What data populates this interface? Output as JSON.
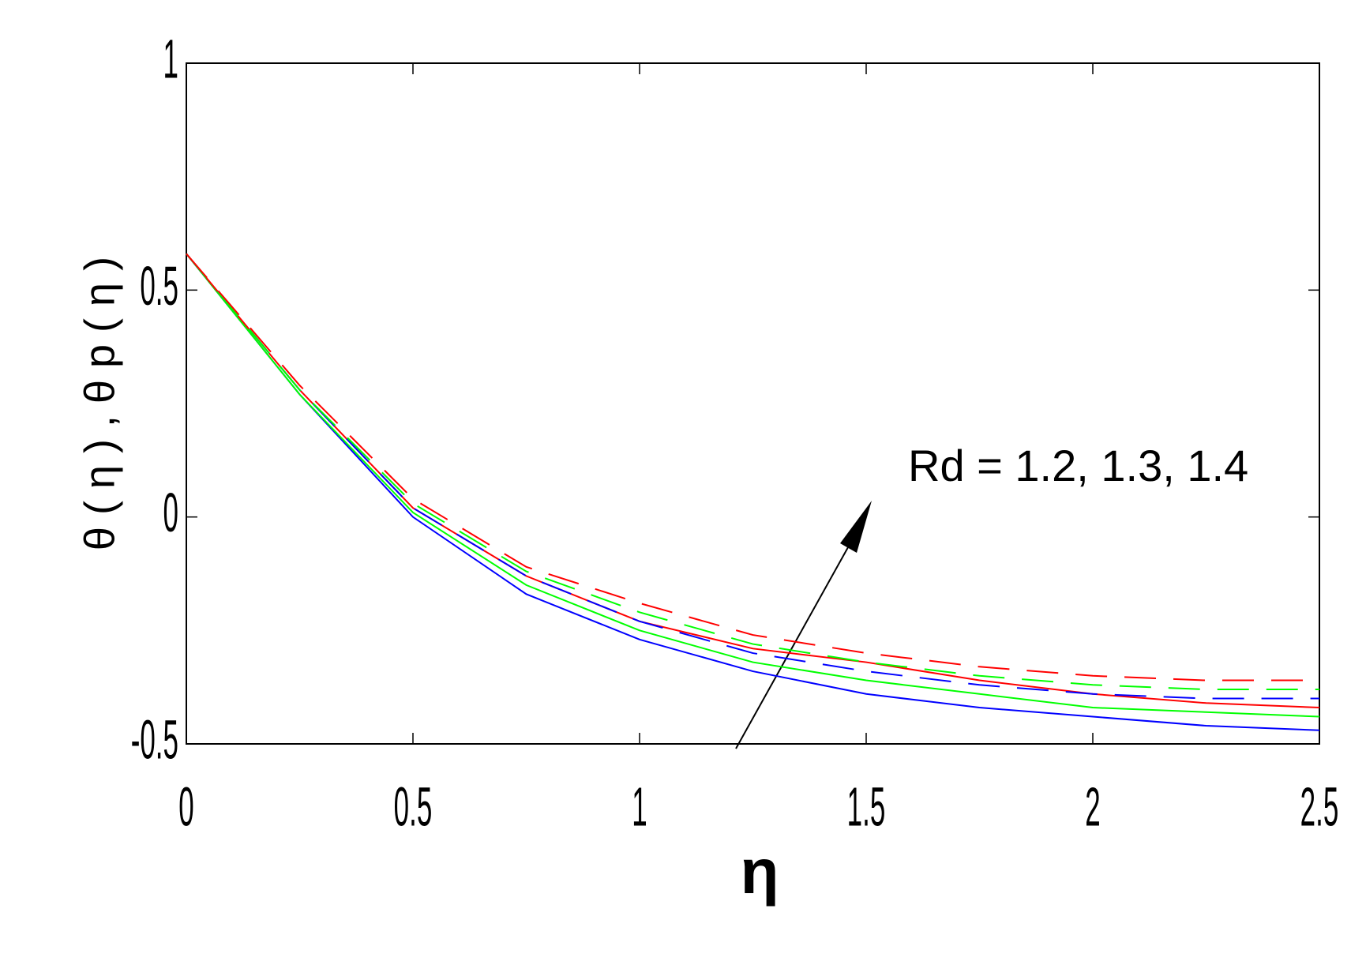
{
  "chart_data": {
    "type": "line",
    "x_label": "η",
    "y_label": "θ ( η ) , θ p ( η )",
    "annotation": "Rd = 1.2, 1.3, 1.4",
    "x": [
      0,
      0.25,
      0.5,
      0.75,
      1,
      1.25,
      1.5,
      1.75,
      2,
      2.25,
      2.5
    ],
    "series": [
      {
        "color": "#0000ff",
        "dashed": false,
        "values": [
          0.58,
          0.27,
          0.0,
          -0.17,
          -0.27,
          -0.34,
          -0.39,
          -0.42,
          -0.44,
          -0.46,
          -0.47
        ]
      },
      {
        "color": "#00ff00",
        "dashed": false,
        "values": [
          0.58,
          0.27,
          0.01,
          -0.15,
          -0.25,
          -0.32,
          -0.36,
          -0.39,
          -0.42,
          -0.43,
          -0.44
        ]
      },
      {
        "color": "#ff0000",
        "dashed": false,
        "values": [
          0.58,
          0.28,
          0.02,
          -0.13,
          -0.23,
          -0.29,
          -0.32,
          -0.36,
          -0.39,
          -0.41,
          -0.42
        ]
      },
      {
        "color": "#0000ff",
        "dashed": true,
        "values": [
          0.58,
          0.28,
          0.02,
          -0.13,
          -0.23,
          -0.3,
          -0.34,
          -0.37,
          -0.39,
          -0.4,
          -0.4
        ]
      },
      {
        "color": "#00ff00",
        "dashed": true,
        "values": [
          0.58,
          0.28,
          0.03,
          -0.12,
          -0.21,
          -0.28,
          -0.32,
          -0.35,
          -0.37,
          -0.38,
          -0.38
        ]
      },
      {
        "color": "#ff0000",
        "dashed": true,
        "values": [
          0.58,
          0.29,
          0.04,
          -0.11,
          -0.19,
          -0.26,
          -0.3,
          -0.33,
          -0.35,
          -0.36,
          -0.36
        ]
      }
    ],
    "xlim": [
      0,
      2.5
    ],
    "xticks": [
      0,
      0.5,
      1,
      1.5,
      2,
      2.5
    ],
    "ylim": [
      -0.5,
      1
    ],
    "yticks": [
      -0.5,
      0,
      0.5,
      1
    ]
  }
}
